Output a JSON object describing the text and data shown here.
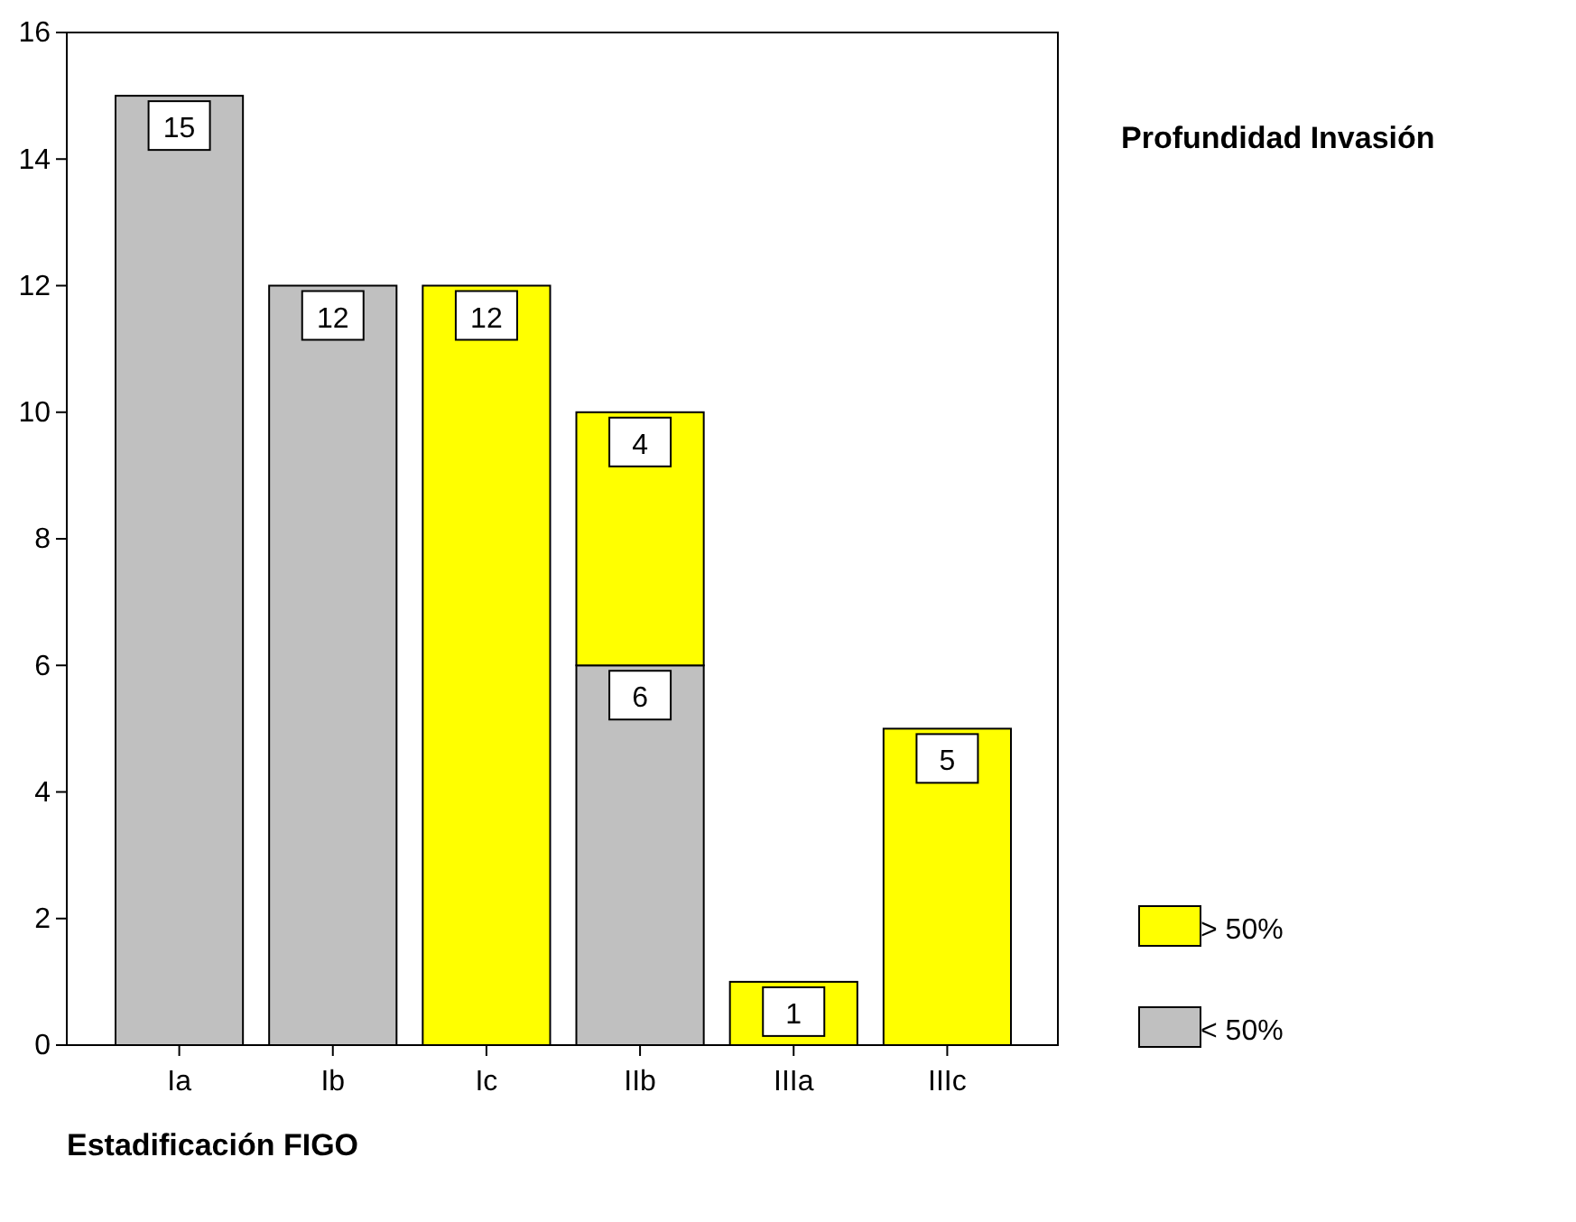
{
  "chart_data": {
    "type": "bar",
    "stacked": true,
    "categories": [
      "Ia",
      "Ib",
      "Ic",
      "IIb",
      "IIIa",
      "IIIc"
    ],
    "series": [
      {
        "name": "< 50%",
        "color": "#c0c0c0",
        "values": [
          15,
          12,
          null,
          6,
          null,
          null
        ]
      },
      {
        "name": "> 50%",
        "color": "#ffff00",
        "values": [
          null,
          null,
          12,
          4,
          1,
          5
        ]
      }
    ],
    "ylim": [
      0,
      16
    ],
    "yticks": [
      0,
      2,
      4,
      6,
      8,
      10,
      12,
      14,
      16
    ],
    "xlabel": "Estadificación FIGO",
    "legend_title": "Profundidad Invasión",
    "legend": "right",
    "data_labels": true,
    "grid": false
  }
}
